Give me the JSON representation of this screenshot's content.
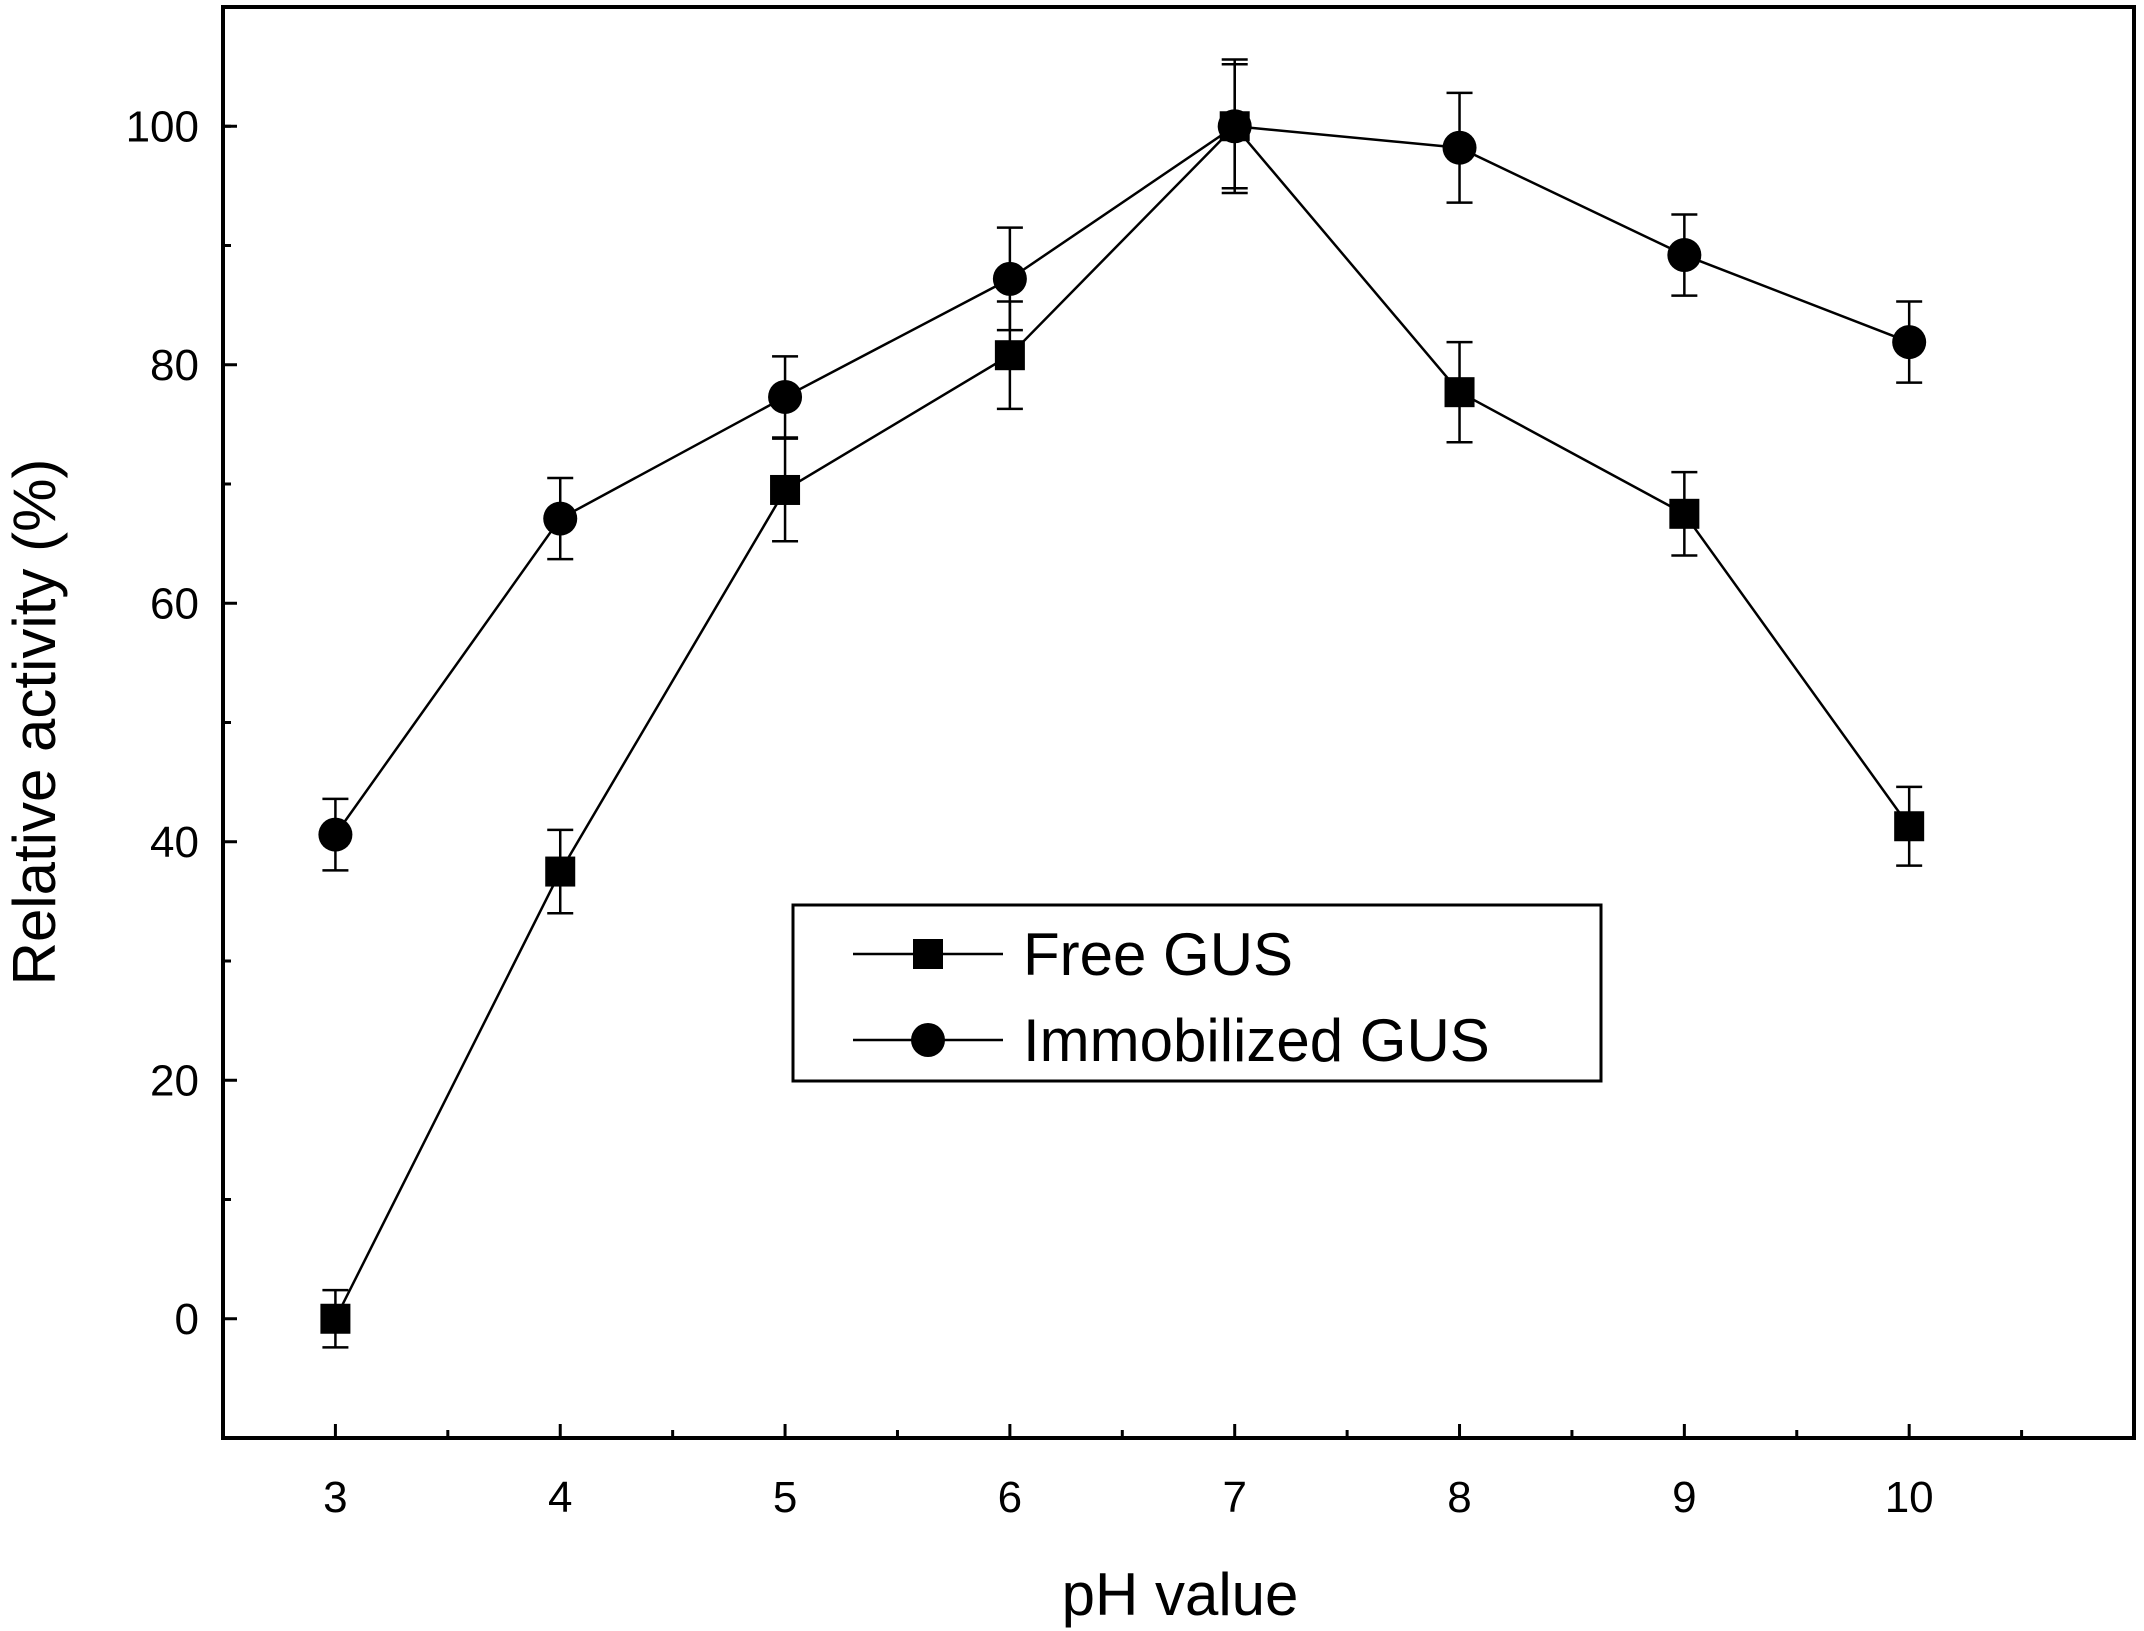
{
  "chart_data": {
    "type": "line",
    "xlabel": "pH value",
    "ylabel": "Relative activity (%)",
    "xlim": [
      2.5,
      11
    ],
    "ylim": [
      -10,
      110
    ],
    "x_ticks": [
      3,
      4,
      5,
      6,
      7,
      8,
      9,
      10
    ],
    "y_ticks": [
      0,
      20,
      40,
      60,
      80,
      100
    ],
    "grid": false,
    "legend_position": "center",
    "x": [
      3,
      4,
      5,
      6,
      7,
      8,
      9,
      10
    ],
    "series": [
      {
        "name": "Free GUS",
        "marker": "square",
        "values": [
          0,
          37.5,
          69.5,
          80.8,
          100,
          77.7,
          67.5,
          41.3
        ],
        "errors": [
          2.4,
          3.5,
          4.3,
          4.5,
          5.2,
          4.2,
          3.5,
          3.3
        ]
      },
      {
        "name": "Immobilized GUS",
        "marker": "circle",
        "values": [
          40.6,
          67.1,
          77.3,
          87.2,
          100,
          98.2,
          89.2,
          81.9
        ],
        "errors": [
          3.0,
          3.4,
          3.4,
          4.3,
          5.6,
          4.6,
          3.4,
          3.4
        ]
      }
    ]
  }
}
